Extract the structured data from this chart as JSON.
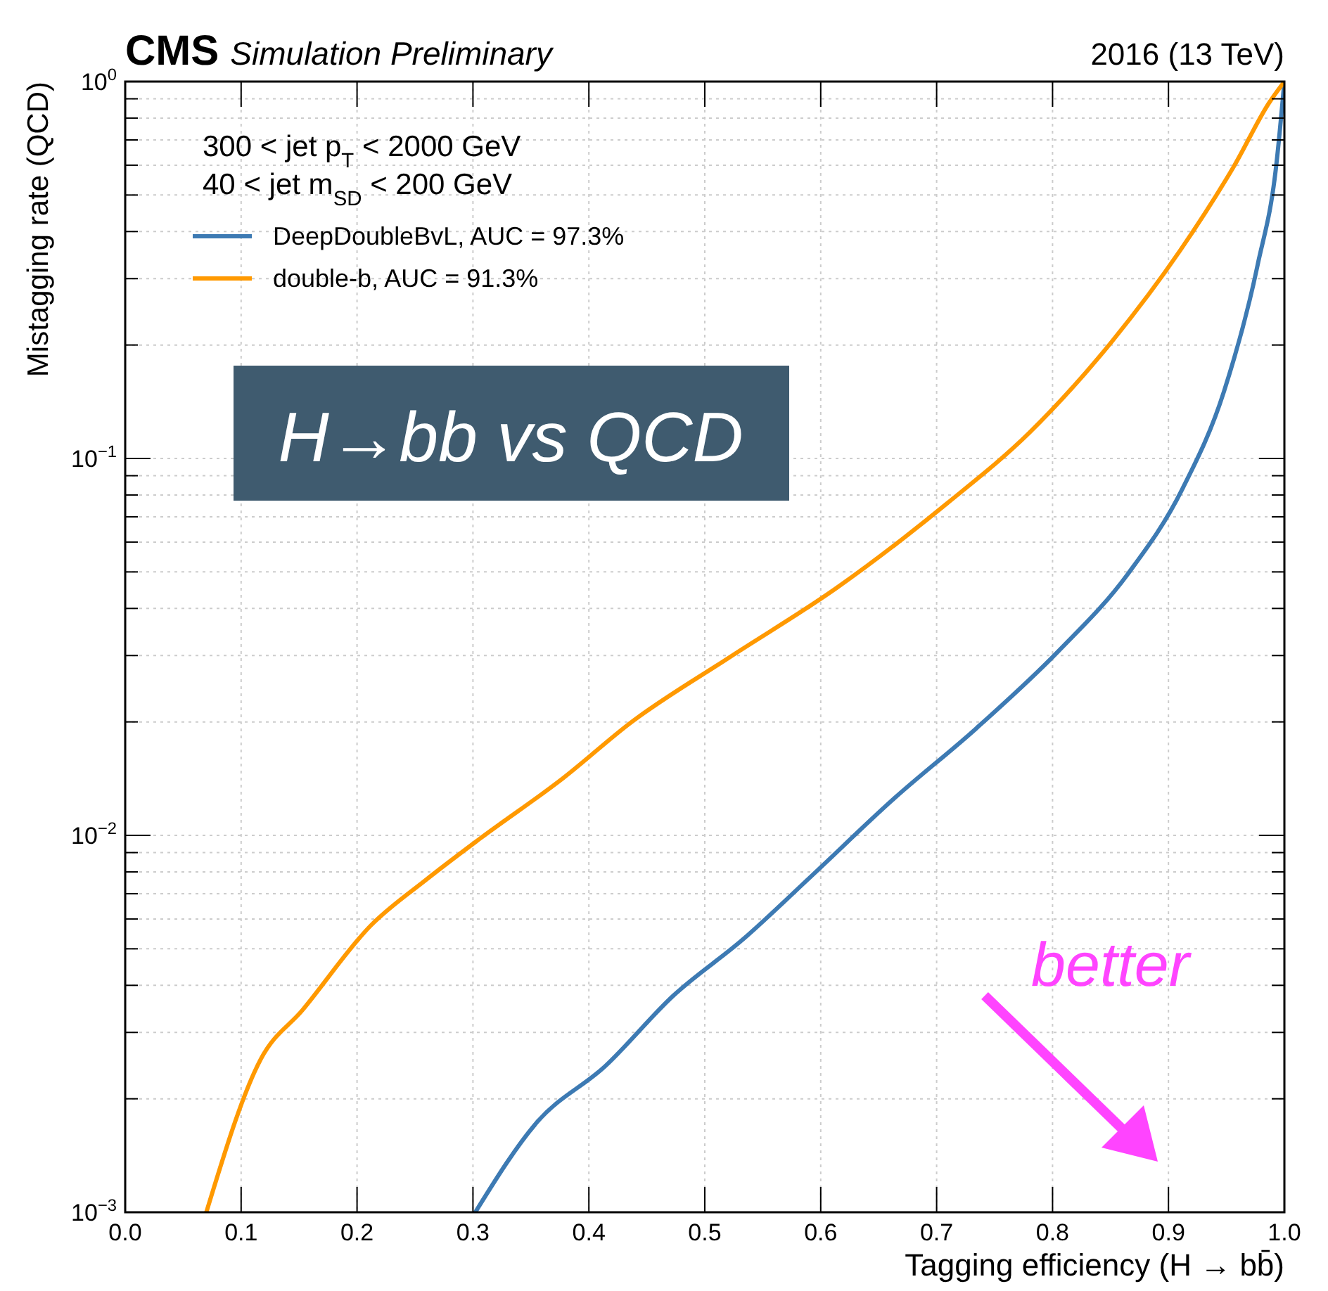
{
  "chart_data": {
    "type": "line",
    "title": "CMS",
    "subtitle": "Simulation Preliminary",
    "xlabel": "Tagging efficiency (H → bb̄)",
    "ylabel": "Mistagging rate (QCD)",
    "annotations": [
      "2016 (13 TeV)",
      "300 <  jet p$_{T}$  < 2000 GeV",
      "40 <  jet m$_{SD}$  < 200 GeV",
      "H→bb vs QCD",
      "better"
    ],
    "log": "y",
    "grid": true,
    "legend": "top left",
    "line_style": "solid",
    "xlim": [
      0,
      1
    ],
    "xticks": [
      {
        "value": 0,
        "label": "0.0"
      },
      0.1,
      0.2,
      0.3,
      0.4,
      0.5,
      0.6,
      0.7,
      0.8,
      0.9,
      {
        "value": 1,
        "label": "1.0"
      }
    ],
    "ylim": [
      0.001,
      1
    ],
    "yticks": [
      {
        "value": 0.001,
        "label": "10$^{−3}$"
      },
      {
        "value": 0.002,
        "label": null
      },
      {
        "value": 0.003,
        "label": null
      },
      {
        "value": 0.004,
        "label": null
      },
      {
        "value": 0.005,
        "label": null
      },
      {
        "value": 0.006,
        "label": null
      },
      {
        "value": 0.007,
        "label": null
      },
      {
        "value": 0.008,
        "label": null
      },
      {
        "value": 0.009,
        "label": null
      },
      {
        "value": 0.01,
        "label": "10$^{−2}$"
      },
      {
        "value": 0.02,
        "label": null
      },
      {
        "value": 0.03,
        "label": null
      },
      {
        "value": 0.04,
        "label": null
      },
      {
        "value": 0.05,
        "label": null
      },
      {
        "value": 0.06,
        "label": null
      },
      {
        "value": 0.07,
        "label": null
      },
      {
        "value": 0.08,
        "label": null
      },
      {
        "value": 0.09,
        "label": null
      },
      {
        "value": 0.1,
        "label": "10$^{−1}$"
      },
      {
        "value": 0.2,
        "label": null
      },
      {
        "value": 0.3,
        "label": null
      },
      {
        "value": 0.4,
        "label": null
      },
      {
        "value": 0.5,
        "label": null
      },
      {
        "value": 0.6,
        "label": null
      },
      {
        "value": 0.7,
        "label": null
      },
      {
        "value": 0.8,
        "label": null
      },
      {
        "value": 0.9,
        "label": null
      },
      {
        "value": 1,
        "label": "10$^{0}$"
      }
    ],
    "series": [
      {
        "name": "DeepDoubleBvL, AUC = 97.3%",
        "color": "#3d7ab3",
        "x": [
          0.302,
          0.355,
          0.414,
          0.473,
          0.533,
          0.592,
          0.663,
          0.734,
          0.805,
          0.865,
          0.912,
          0.948,
          0.977,
          0.993,
          1.0
        ],
        "values": [
          0.001,
          0.00173,
          0.00244,
          0.00376,
          0.0053,
          0.0078,
          0.0125,
          0.0192,
          0.0308,
          0.0494,
          0.083,
          0.151,
          0.327,
          0.6,
          1.0
        ]
      },
      {
        "name": "double-b, AUC = 91.3%",
        "color": "#ff9900",
        "x": [
          0.07,
          0.117,
          0.153,
          0.212,
          0.259,
          0.306,
          0.378,
          0.437,
          0.52,
          0.614,
          0.709,
          0.78,
          0.851,
          0.91,
          0.957,
          0.987,
          1.0
        ],
        "values": [
          0.001,
          0.00255,
          0.00344,
          0.00577,
          0.0076,
          0.0098,
          0.0142,
          0.02,
          0.0295,
          0.0454,
          0.076,
          0.117,
          0.204,
          0.356,
          0.6,
          0.88,
          1.0
        ]
      }
    ]
  }
}
